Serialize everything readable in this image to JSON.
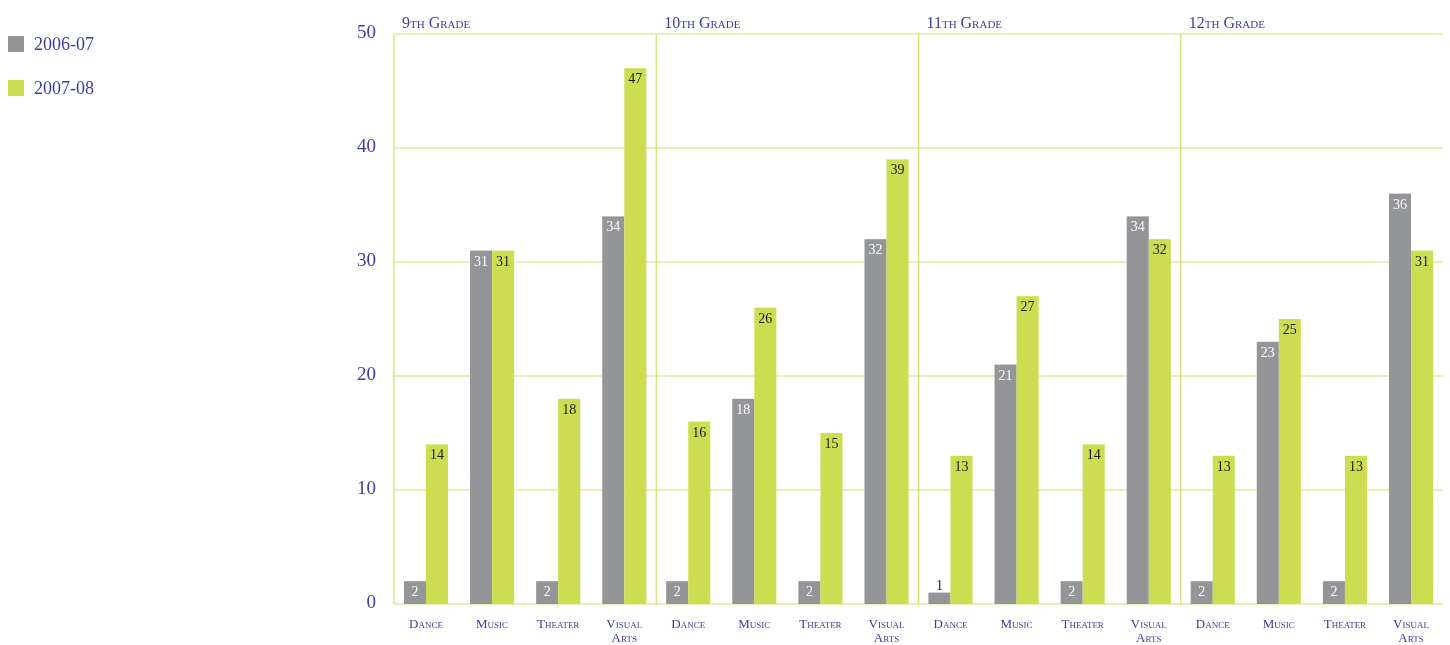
{
  "chart_data": [
    {
      "type": "bar",
      "title": "9th Grade",
      "categories": [
        "Dance",
        "Music",
        "Theater",
        "Visual Arts"
      ],
      "series": [
        {
          "name": "2006-07",
          "color": "#939598",
          "values": [
            2,
            31,
            2,
            34
          ]
        },
        {
          "name": "2007-08",
          "color": "#cddd52",
          "values": [
            14,
            31,
            18,
            47
          ]
        }
      ],
      "ylim": [
        0,
        50
      ],
      "yticks": [
        0,
        10,
        20,
        30,
        40,
        50
      ],
      "grid": "y",
      "legend": "left",
      "data_labels": true
    },
    {
      "type": "bar",
      "title": "10th Grade",
      "categories": [
        "Dance",
        "Music",
        "Theater",
        "Visual Arts"
      ],
      "series": [
        {
          "color": "#939598",
          "values": [
            2,
            18,
            2,
            32
          ]
        },
        {
          "color": "#cddd52",
          "values": [
            16,
            26,
            15,
            39
          ]
        }
      ],
      "ylim": [
        0,
        50
      ],
      "yticks": [
        0,
        10,
        20,
        30,
        40,
        50
      ],
      "grid": "y",
      "tick_labels": "x",
      "data_labels": true
    },
    {
      "type": "bar",
      "title": "11th Grade",
      "categories": [
        "Dance",
        "Music",
        "Theater",
        "Visual Arts"
      ],
      "series": [
        {
          "color": "#939598",
          "values": [
            1,
            21,
            2,
            34
          ]
        },
        {
          "color": "#cddd52",
          "values": [
            13,
            27,
            14,
            32
          ]
        }
      ],
      "ylim": [
        0,
        50
      ],
      "yticks": [
        0,
        10,
        20,
        30,
        40,
        50
      ],
      "grid": "y",
      "tick_labels": "x",
      "data_labels": true
    },
    {
      "type": "bar",
      "title": "12th Grade",
      "categories": [
        "Dance",
        "Music",
        "Theater",
        "Visual Arts"
      ],
      "series": [
        {
          "color": "#939598",
          "values": [
            2,
            23,
            2,
            36
          ]
        },
        {
          "color": "#cddd52",
          "values": [
            13,
            25,
            13,
            31
          ]
        }
      ],
      "ylim": [
        0,
        50
      ],
      "yticks": [
        0,
        10,
        20,
        30,
        40,
        50
      ],
      "grid": "y",
      "tick_labels": "x",
      "data_labels": true
    }
  ]
}
